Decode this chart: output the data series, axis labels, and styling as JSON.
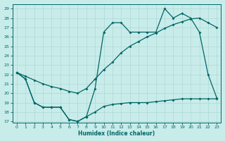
{
  "xlabel": "Humidex (Indice chaleur)",
  "bg_color": "#c8ecea",
  "line_color": "#006666",
  "grid_color": "#b0d8d4",
  "xlim": [
    -0.5,
    23.5
  ],
  "ylim": [
    17,
    29.5
  ],
  "yticks": [
    17,
    18,
    19,
    20,
    21,
    22,
    23,
    24,
    25,
    26,
    27,
    28,
    29
  ],
  "xticks": [
    0,
    1,
    2,
    3,
    4,
    5,
    6,
    7,
    8,
    9,
    10,
    11,
    12,
    13,
    14,
    15,
    16,
    17,
    18,
    19,
    20,
    21,
    22,
    23
  ],
  "line1_x": [
    0,
    1,
    2,
    3,
    4,
    5,
    6,
    7,
    8,
    9,
    10,
    11,
    12,
    13,
    14,
    15,
    16,
    17,
    18,
    19,
    20,
    21,
    22,
    23
  ],
  "line1_y": [
    22.2,
    21.5,
    19.0,
    18.5,
    18.5,
    18.5,
    17.2,
    17.0,
    17.5,
    18.0,
    18.6,
    18.8,
    18.9,
    19.0,
    19.0,
    19.0,
    19.1,
    19.2,
    19.3,
    19.4,
    19.4,
    19.4,
    19.4,
    19.4
  ],
  "line2_x": [
    0,
    1,
    2,
    3,
    4,
    5,
    6,
    7,
    8,
    9,
    10,
    11,
    12,
    13,
    14,
    15,
    16,
    17,
    18,
    19,
    20,
    21,
    22,
    23
  ],
  "line2_y": [
    22.2,
    21.8,
    21.4,
    21.0,
    20.7,
    20.5,
    20.2,
    20.0,
    20.5,
    21.5,
    22.5,
    23.3,
    24.3,
    25.0,
    25.5,
    26.0,
    26.4,
    26.9,
    27.3,
    27.6,
    27.9,
    28.0,
    27.5,
    27.0
  ],
  "line3_x": [
    0,
    1,
    2,
    3,
    4,
    5,
    6,
    7,
    8,
    9,
    10,
    11,
    12,
    13,
    14,
    15,
    16,
    17,
    18,
    19,
    20,
    21,
    22,
    23
  ],
  "line3_y": [
    22.2,
    21.5,
    19.0,
    18.5,
    18.5,
    18.5,
    17.2,
    17.0,
    17.5,
    20.5,
    26.5,
    27.5,
    27.5,
    26.5,
    26.5,
    26.5,
    26.5,
    29.0,
    28.0,
    28.5,
    28.0,
    26.5,
    22.0,
    19.5
  ],
  "figsize": [
    3.2,
    2.0
  ],
  "dpi": 100
}
